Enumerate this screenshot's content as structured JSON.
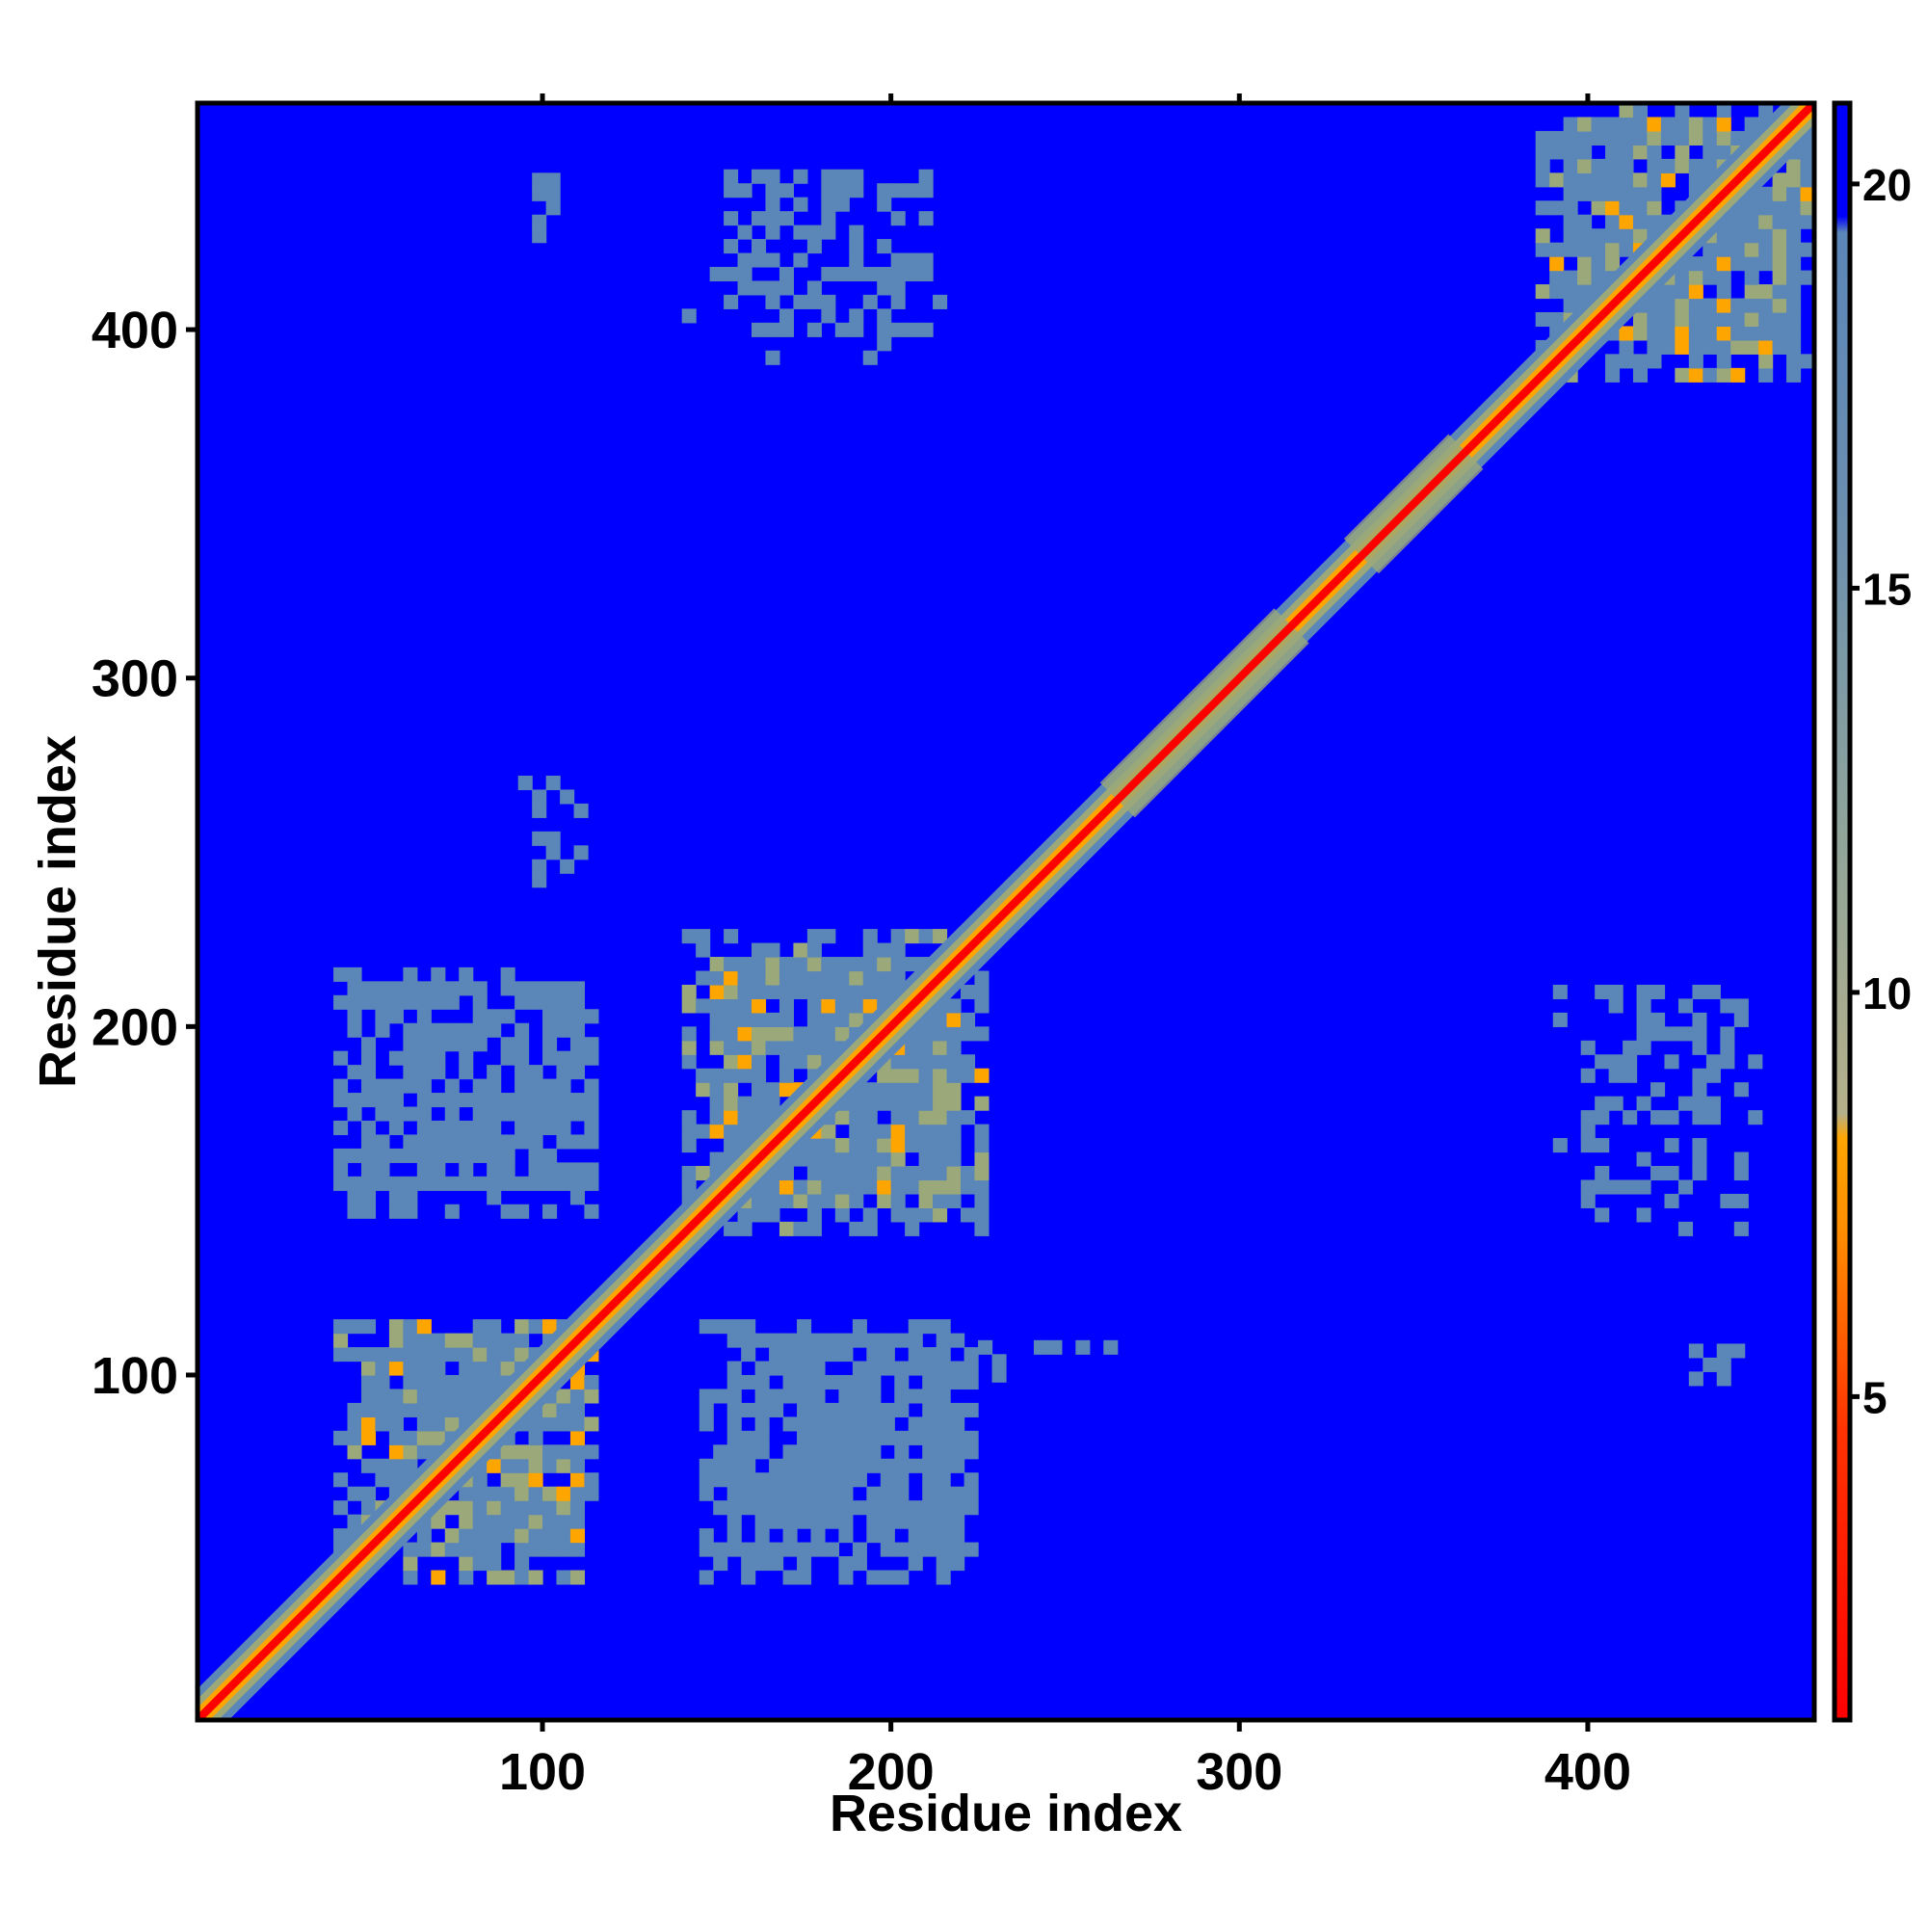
{
  "chart_data": {
    "type": "heatmap",
    "title": "",
    "xlabel": "Residue index",
    "ylabel": "Residue index",
    "xlim": [
      1,
      465
    ],
    "ylim": [
      1,
      465
    ],
    "x_ticks": [
      100,
      200,
      300,
      400
    ],
    "y_ticks": [
      100,
      200,
      300,
      400
    ],
    "colorbar": {
      "range": [
        1,
        21
      ],
      "ticks": [
        5,
        10,
        15,
        20
      ],
      "colors": {
        "low": "#ff0000",
        "mid": "#ffa500",
        "mid2": "#9aa87a",
        "high": "#5b86b8",
        "background": "#0000ff"
      }
    },
    "matrix": {
      "description_free": true,
      "diagonal_value": 1,
      "background_value": 21,
      "domains": [
        {
          "x": [
            40,
            115
          ],
          "y": [
            40,
            115
          ],
          "value": 17,
          "core": true
        },
        {
          "x": [
            140,
            225
          ],
          "y": [
            140,
            225
          ],
          "value": 17,
          "core": true
        },
        {
          "x": [
            385,
            465
          ],
          "y": [
            385,
            465
          ],
          "value": 17,
          "core": true
        },
        {
          "x": [
            40,
            115
          ],
          "y": [
            145,
            215
          ],
          "value": 18,
          "core": false
        },
        {
          "x": [
            145,
            225
          ],
          "y": [
            40,
            115
          ],
          "value": 18,
          "core": false
        },
        {
          "x": [
            140,
            215
          ],
          "y": [
            390,
            450
          ],
          "value": 19,
          "core": false
        },
        {
          "x": [
            390,
            450
          ],
          "y": [
            140,
            215
          ],
          "value": 19,
          "core": false
        },
        {
          "x": [
            93,
            110
          ],
          "y": [
            240,
            270
          ],
          "value": 19,
          "core": false
        },
        {
          "x": [
            225,
            270
          ],
          "y": [
            98,
            108
          ],
          "value": 19,
          "core": false
        },
        {
          "x": [
            93,
            110
          ],
          "y": [
            425,
            445
          ],
          "value": 19,
          "core": false
        },
        {
          "x": [
            425,
            445
          ],
          "y": [
            93,
            110
          ],
          "value": 19,
          "core": false
        }
      ],
      "diagonal_bands": [
        {
          "x": [
            340,
            360
          ],
          "value": 13
        },
        {
          "x": [
            295,
            310
          ],
          "value": 13
        },
        {
          "x": [
            270,
            285
          ],
          "value": 13
        }
      ]
    }
  }
}
